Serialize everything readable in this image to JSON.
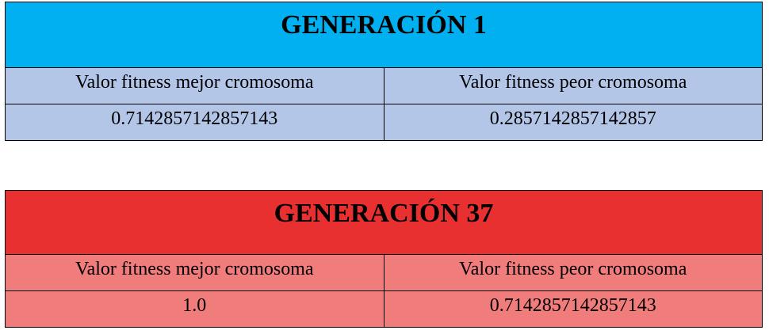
{
  "colors": {
    "gen1_header_bg": "#00b0f0",
    "gen1_cell_bg": "#b4c6e7",
    "gen37_header_bg": "#e83030",
    "gen37_cell_bg": "#f07c7c",
    "border": "#000000"
  },
  "tables": [
    {
      "title": "GENERACIÓN 1",
      "best_label": "Valor fitness mejor cromosoma",
      "worst_label": "Valor fitness peor cromosoma",
      "best_value": "0.7142857142857143",
      "worst_value": "0.2857142857142857"
    },
    {
      "title": "GENERACIÓN 37",
      "best_label": "Valor fitness mejor cromosoma",
      "worst_label": "Valor fitness peor cromosoma",
      "best_value": "1.0",
      "worst_value": "0.7142857142857143"
    }
  ]
}
